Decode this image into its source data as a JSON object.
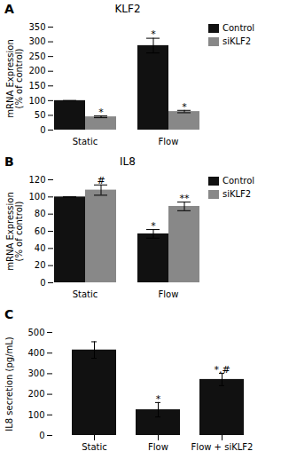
{
  "chart_data": [
    {
      "type": "bar",
      "panel_label": "A",
      "title": "KLF2",
      "categories": [
        "Static",
        "Flow"
      ],
      "series": [
        {
          "name": "Control",
          "color": "#111111",
          "values": [
            100,
            287
          ],
          "errors": [
            0,
            25
          ]
        },
        {
          "name": "siKLF2",
          "color": "#888888",
          "values": [
            45,
            63
          ],
          "errors": [
            3,
            4
          ]
        }
      ],
      "ylabel": "mRNA Expression\n(% of control)",
      "ylim": [
        0,
        350
      ],
      "yticks": [
        0,
        50,
        100,
        150,
        200,
        250,
        300,
        350
      ],
      "legend": "right",
      "annotations": [
        {
          "text": "*",
          "category": "Static",
          "series": "siKLF2",
          "y": 50
        },
        {
          "text": "*",
          "category": "Flow",
          "series": "Control",
          "y": 314
        },
        {
          "text": "*",
          "category": "Flow",
          "series": "siKLF2",
          "y": 68
        }
      ]
    },
    {
      "type": "bar",
      "panel_label": "B",
      "title": "IL8",
      "categories": [
        "Static",
        "Flow"
      ],
      "series": [
        {
          "name": "Control",
          "color": "#111111",
          "values": [
            100,
            57
          ],
          "errors": [
            0,
            5
          ]
        },
        {
          "name": "siKLF2",
          "color": "#888888",
          "values": [
            108,
            89
          ],
          "errors": [
            6,
            5
          ]
        }
      ],
      "ylabel": "mRNA Expression\n(% of control)",
      "ylim": [
        0,
        120
      ],
      "yticks": [
        0,
        20,
        40,
        60,
        80,
        100,
        120
      ],
      "legend": "right",
      "annotations": [
        {
          "text": "#",
          "category": "Static",
          "series": "siKLF2",
          "y": 115
        },
        {
          "text": "*",
          "category": "Flow",
          "series": "Control",
          "y": 63
        },
        {
          "text": "**",
          "category": "Flow",
          "series": "siKLF2",
          "y": 95
        }
      ]
    },
    {
      "type": "bar",
      "panel_label": "C",
      "categories": [
        "Static",
        "Flow",
        "Flow + siKLF2"
      ],
      "values": [
        415,
        125,
        272
      ],
      "errors": [
        40,
        35,
        30
      ],
      "color": "#111111",
      "ylabel": "IL8 secretion (pg/mL)",
      "ylim": [
        0,
        500
      ],
      "yticks": [
        0,
        100,
        200,
        300,
        400,
        500
      ],
      "annotations": [
        {
          "text": "*",
          "category": "Flow",
          "y": 162
        },
        {
          "text": "*,#",
          "category": "Flow + siKLF2",
          "y": 304
        }
      ]
    }
  ]
}
